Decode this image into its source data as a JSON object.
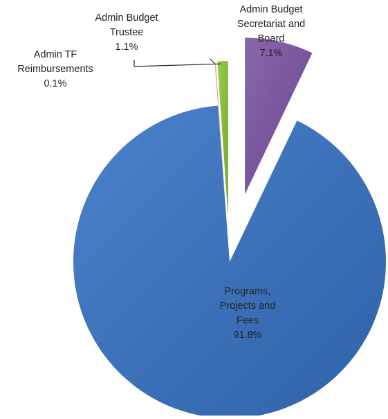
{
  "chart_data": {
    "type": "pie",
    "title": "",
    "slices": [
      {
        "key": "admin-budget-secretariat-board",
        "label_lines": [
          "Admin Budget",
          "Secretariat and",
          "Board"
        ],
        "value": 7.1,
        "value_label": "7.1%",
        "color": "#7f5aa0"
      },
      {
        "key": "programs-projects-fees",
        "label_lines": [
          "Programs,",
          "Projects and",
          "Fees"
        ],
        "value": 91.8,
        "value_label": "91.8%",
        "color": "#3f76c2"
      },
      {
        "key": "admin-tf-reimbursements",
        "label_lines": [
          "Admin TF",
          "Reimbursements"
        ],
        "value": 0.1,
        "value_label": "0.1%",
        "color": "#e8a0a8"
      },
      {
        "key": "admin-budget-trustee",
        "label_lines": [
          "Admin Budget",
          "Trustee"
        ],
        "value": 1.1,
        "value_label": "1.1%",
        "color": "#8cc63f"
      }
    ]
  }
}
